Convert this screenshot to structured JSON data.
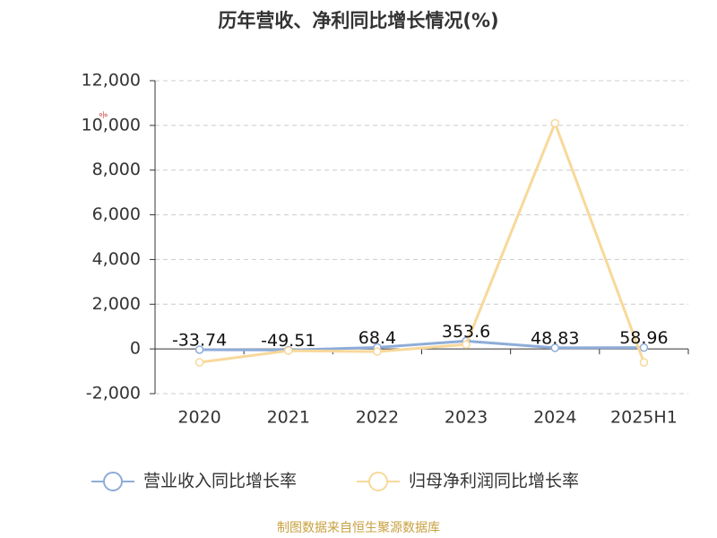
{
  "chart_data": {
    "type": "line",
    "title": "历年营收、净利同比增长情况(%)",
    "y_unit": "%",
    "categories": [
      "2020",
      "2021",
      "2022",
      "2023",
      "2024",
      "2025H1"
    ],
    "series": [
      {
        "name": "营业收入同比增长率",
        "color": "#8eacd8",
        "values": [
          -33.74,
          -49.51,
          68.4,
          353.6,
          48.83,
          58.96
        ],
        "data_labels": true
      },
      {
        "name": "归母净利润同比增长率",
        "color": "#f8d89a",
        "values": [
          -600,
          -80,
          -120,
          200,
          10100,
          -600
        ],
        "data_labels": false
      }
    ],
    "ylim": [
      -2000,
      12000
    ],
    "yticks": [
      {
        "value": -2000,
        "label": "-2,000"
      },
      0,
      {
        "value": 2000,
        "label": "2,000"
      },
      {
        "value": 4000,
        "label": "4,000"
      },
      {
        "value": 6000,
        "label": "6,000"
      },
      {
        "value": 8000,
        "label": "8,000"
      },
      {
        "value": 10000,
        "label": "10,000"
      },
      {
        "value": 12000,
        "label": "12,000"
      }
    ],
    "grid": true,
    "source": "制图数据来自恒生聚源数据库"
  }
}
